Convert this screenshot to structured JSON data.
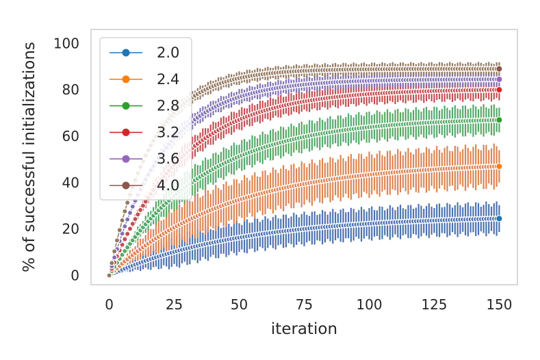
{
  "chart_data": {
    "type": "line",
    "title": "",
    "xlabel": "iteration",
    "ylabel": "% of successful initializations",
    "xlim": [
      -7,
      157
    ],
    "ylim": [
      -4,
      106
    ],
    "xticks": [
      0,
      25,
      50,
      75,
      100,
      125,
      150
    ],
    "yticks": [
      0,
      20,
      40,
      60,
      80,
      100
    ],
    "grid": false,
    "legend_position": "top-left",
    "error_bars": true,
    "x_range": [
      0,
      150
    ],
    "series": [
      {
        "name": "2.0",
        "color": "#4c72b0",
        "final_mean": 24.5,
        "final_err": 7.5,
        "k": 0.02,
        "marker_color": "#1f77b4"
      },
      {
        "name": "2.4",
        "color": "#dd8452",
        "final_mean": 47,
        "final_err": 10,
        "k": 0.022,
        "marker_color": "#ff7f0e"
      },
      {
        "name": "2.8",
        "color": "#55a868",
        "final_mean": 67,
        "final_err": 7,
        "k": 0.028,
        "marker_color": "#2ca02c"
      },
      {
        "name": "3.2",
        "color": "#c44e52",
        "final_mean": 80,
        "final_err": 5,
        "k": 0.036,
        "marker_color": "#d62728"
      },
      {
        "name": "3.6",
        "color": "#8172b3",
        "final_mean": 84.5,
        "final_err": 3.5,
        "k": 0.048,
        "marker_color": "#9467bd"
      },
      {
        "name": "4.0",
        "color": "#937860",
        "final_mean": 89,
        "final_err": 3,
        "k": 0.062,
        "marker_color": "#8c564b"
      }
    ]
  }
}
